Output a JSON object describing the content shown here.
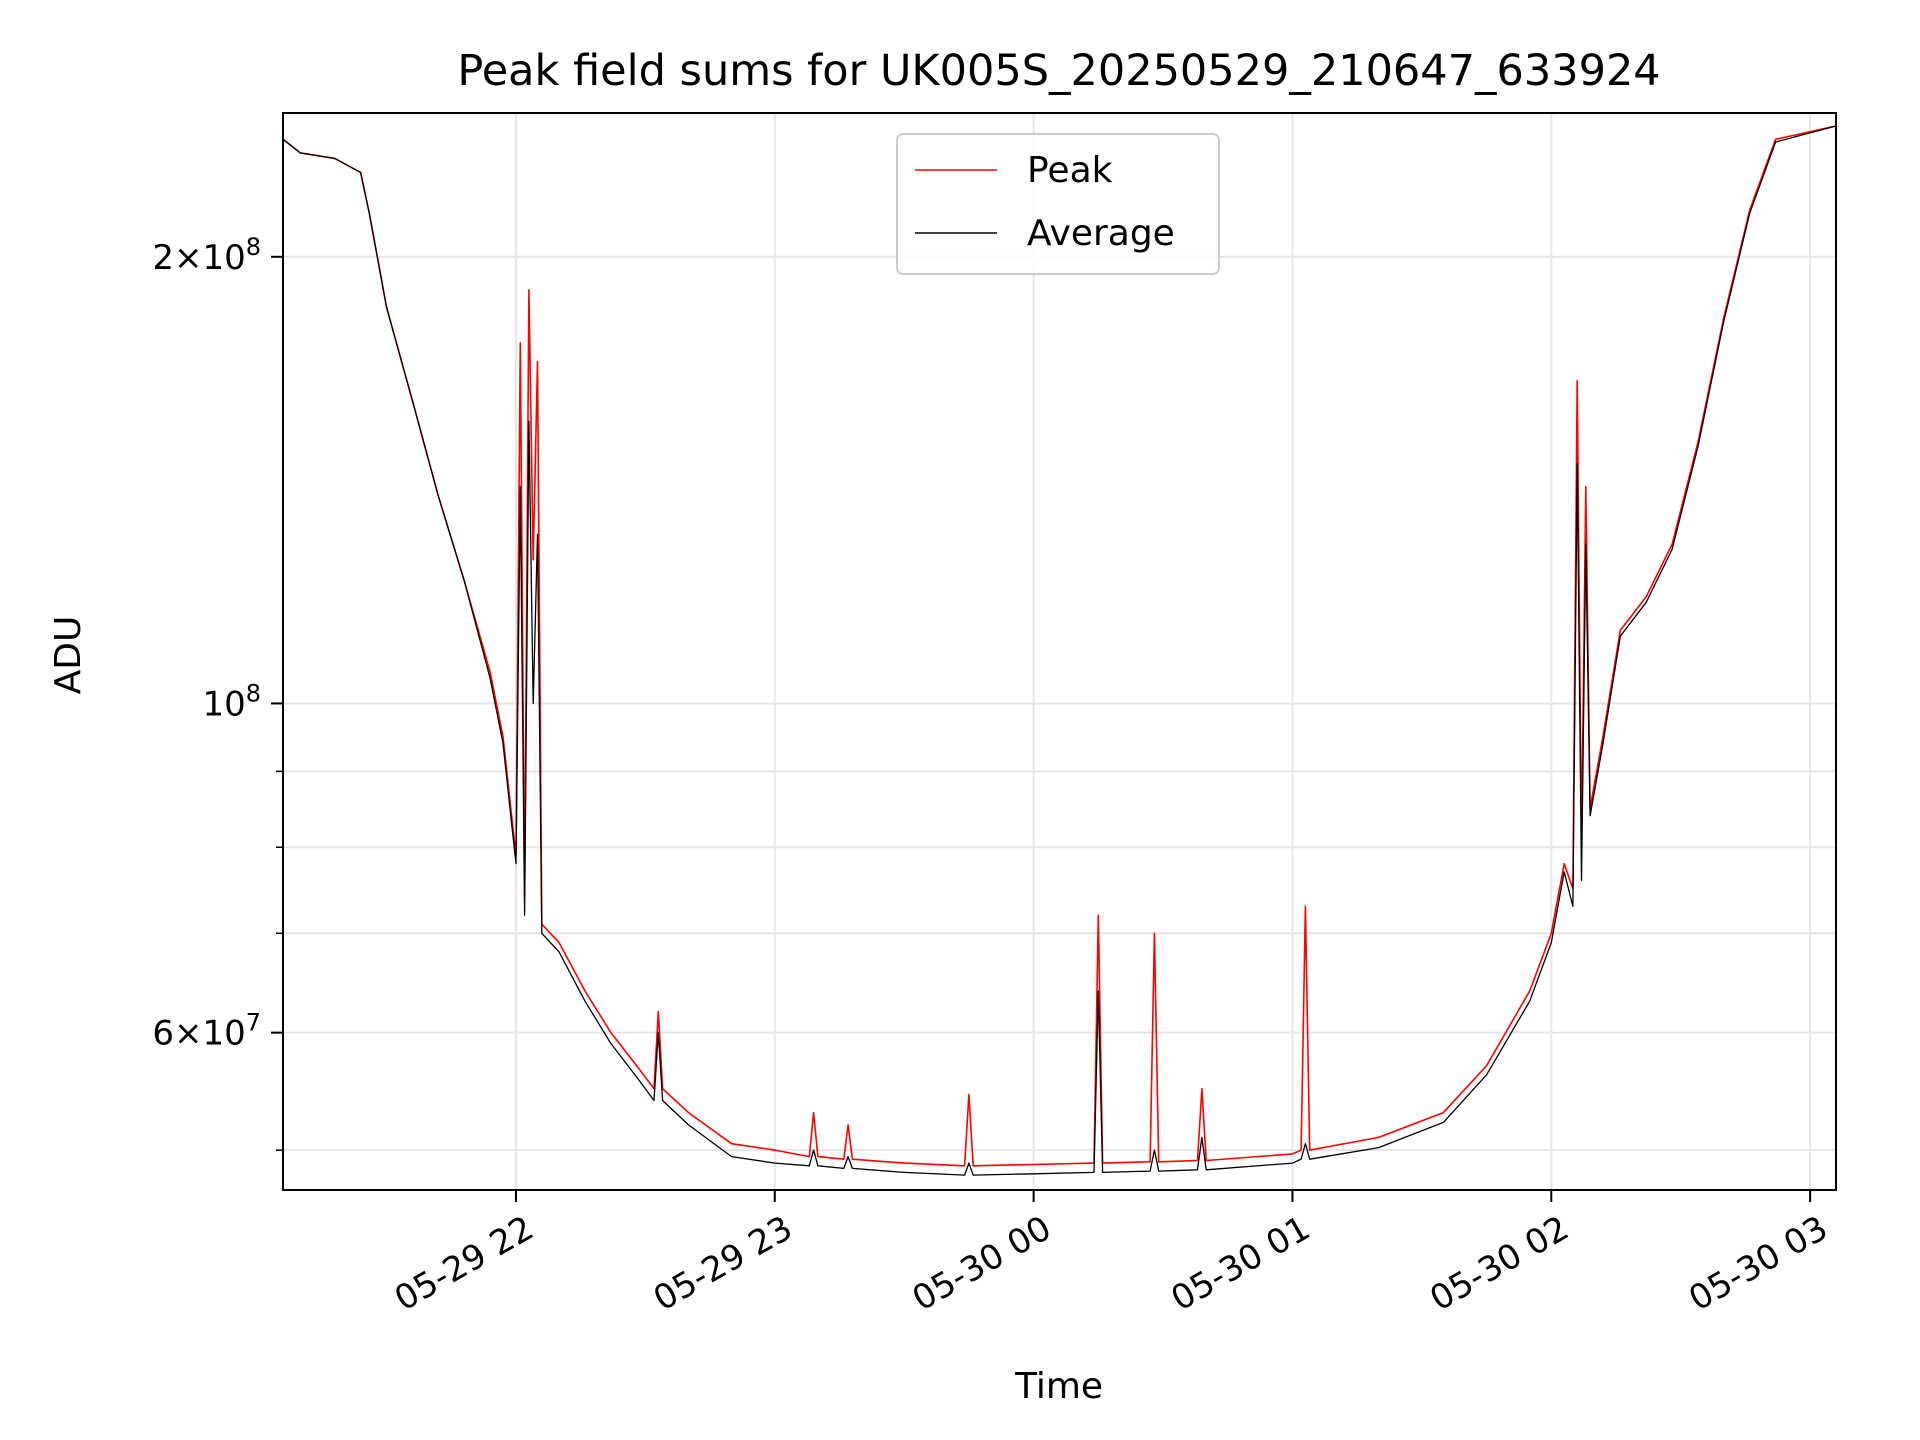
{
  "chart_data": {
    "type": "line",
    "title": "Peak field sums for UK005S_20250529_210647_633924",
    "xlabel": "Time",
    "ylabel": "ADU",
    "yscale": "log",
    "xlim": [
      "2025-05-29 21:06",
      "2025-05-30 03:06"
    ],
    "ylim": [
      47000000,
      250000000
    ],
    "grid": true,
    "legend": {
      "position": "top-center",
      "entries": [
        "Peak",
        "Average"
      ]
    },
    "x_ticks": [
      {
        "value": "2025-05-29 22:00",
        "label": "05-29 22"
      },
      {
        "value": "2025-05-29 23:00",
        "label": "05-29 23"
      },
      {
        "value": "2025-05-30 00:00",
        "label": "05-30 00"
      },
      {
        "value": "2025-05-30 01:00",
        "label": "05-30 01"
      },
      {
        "value": "2025-05-30 02:00",
        "label": "05-30 02"
      },
      {
        "value": "2025-05-30 03:00",
        "label": "05-30 03"
      }
    ],
    "y_ticks_major": [
      {
        "value": 100000000,
        "base": "10",
        "exp": "8",
        "mant": ""
      },
      {
        "value": 200000000,
        "base": "10",
        "exp": "8",
        "mant": "2"
      },
      {
        "value": 60000000,
        "base": "10",
        "exp": "7",
        "mant": "6"
      }
    ],
    "y_ticks_minor": [
      50000000,
      70000000,
      80000000,
      90000000
    ],
    "series": [
      {
        "name": "Peak",
        "color": "#ff0000",
        "points": [
          [
            "2025-05-29 21:06",
            240000000
          ],
          [
            "2025-05-29 21:10",
            235000000
          ],
          [
            "2025-05-29 21:18",
            233000000
          ],
          [
            "2025-05-29 21:24",
            228000000
          ],
          [
            "2025-05-29 21:26",
            214000000
          ],
          [
            "2025-05-29 21:30",
            185000000
          ],
          [
            "2025-05-29 21:36",
            160000000
          ],
          [
            "2025-05-29 21:42",
            138000000
          ],
          [
            "2025-05-29 21:48",
            121000000
          ],
          [
            "2025-05-29 21:54",
            105000000
          ],
          [
            "2025-05-29 21:57",
            95000000
          ],
          [
            "2025-05-29 21:59",
            84000000
          ],
          [
            "2025-05-29 22:00",
            79000000
          ],
          [
            "2025-05-29 22:01",
            175000000
          ],
          [
            "2025-05-29 22:02",
            74000000
          ],
          [
            "2025-05-29 22:03",
            190000000
          ],
          [
            "2025-05-29 22:04",
            125000000
          ],
          [
            "2025-05-29 22:05",
            170000000
          ],
          [
            "2025-05-29 22:06",
            71000000
          ],
          [
            "2025-05-29 22:10",
            69000000
          ],
          [
            "2025-05-29 22:16",
            64000000
          ],
          [
            "2025-05-29 22:22",
            60000000
          ],
          [
            "2025-05-29 22:28",
            57000000
          ],
          [
            "2025-05-29 22:32",
            55000000
          ],
          [
            "2025-05-29 22:33",
            62000000
          ],
          [
            "2025-05-29 22:34",
            55000000
          ],
          [
            "2025-05-29 22:40",
            53000000
          ],
          [
            "2025-05-29 22:50",
            50500000
          ],
          [
            "2025-05-29 23:00",
            50000000
          ],
          [
            "2025-05-29 23:08",
            49500000
          ],
          [
            "2025-05-29 23:09",
            53000000
          ],
          [
            "2025-05-29 23:10",
            49500000
          ],
          [
            "2025-05-29 23:16",
            49300000
          ],
          [
            "2025-05-29 23:17",
            52000000
          ],
          [
            "2025-05-29 23:18",
            49300000
          ],
          [
            "2025-05-29 23:30",
            49000000
          ],
          [
            "2025-05-29 23:44",
            48800000
          ],
          [
            "2025-05-29 23:45",
            54500000
          ],
          [
            "2025-05-29 23:46",
            48800000
          ],
          [
            "2025-05-30 00:00",
            48900000
          ],
          [
            "2025-05-30 00:14",
            49000000
          ],
          [
            "2025-05-30 00:15",
            72000000
          ],
          [
            "2025-05-30 00:16",
            49000000
          ],
          [
            "2025-05-30 00:27",
            49100000
          ],
          [
            "2025-05-30 00:28",
            70000000
          ],
          [
            "2025-05-30 00:29",
            49100000
          ],
          [
            "2025-05-30 00:38",
            49200000
          ],
          [
            "2025-05-30 00:39",
            55000000
          ],
          [
            "2025-05-30 00:40",
            49200000
          ],
          [
            "2025-05-30 01:00",
            49700000
          ],
          [
            "2025-05-30 01:02",
            50000000
          ],
          [
            "2025-05-30 01:03",
            73000000
          ],
          [
            "2025-05-30 01:04",
            50000000
          ],
          [
            "2025-05-30 01:20",
            51000000
          ],
          [
            "2025-05-30 01:35",
            53000000
          ],
          [
            "2025-05-30 01:45",
            57000000
          ],
          [
            "2025-05-30 01:55",
            64000000
          ],
          [
            "2025-05-30 02:00",
            70000000
          ],
          [
            "2025-05-30 02:03",
            78000000
          ],
          [
            "2025-05-30 02:05",
            75000000
          ],
          [
            "2025-05-30 02:06",
            165000000
          ],
          [
            "2025-05-30 02:07",
            80000000
          ],
          [
            "2025-05-30 02:08",
            140000000
          ],
          [
            "2025-05-30 02:09",
            85000000
          ],
          [
            "2025-05-30 02:12",
            95000000
          ],
          [
            "2025-05-30 02:16",
            112000000
          ],
          [
            "2025-05-30 02:22",
            118000000
          ],
          [
            "2025-05-30 02:28",
            128000000
          ],
          [
            "2025-05-30 02:34",
            150000000
          ],
          [
            "2025-05-30 02:40",
            182000000
          ],
          [
            "2025-05-30 02:46",
            215000000
          ],
          [
            "2025-05-30 02:52",
            240000000
          ],
          [
            "2025-05-30 03:06",
            245000000
          ]
        ]
      },
      {
        "name": "Average",
        "color": "#000000",
        "points": [
          [
            "2025-05-29 21:06",
            240000000
          ],
          [
            "2025-05-29 21:10",
            235000000
          ],
          [
            "2025-05-29 21:18",
            233000000
          ],
          [
            "2025-05-29 21:24",
            228000000
          ],
          [
            "2025-05-29 21:26",
            214000000
          ],
          [
            "2025-05-29 21:30",
            185000000
          ],
          [
            "2025-05-29 21:36",
            160000000
          ],
          [
            "2025-05-29 21:42",
            138000000
          ],
          [
            "2025-05-29 21:48",
            121000000
          ],
          [
            "2025-05-29 21:54",
            104000000
          ],
          [
            "2025-05-29 21:57",
            94000000
          ],
          [
            "2025-05-29 21:59",
            83000000
          ],
          [
            "2025-05-29 22:00",
            78000000
          ],
          [
            "2025-05-29 22:01",
            140000000
          ],
          [
            "2025-05-29 22:02",
            72000000
          ],
          [
            "2025-05-29 22:03",
            155000000
          ],
          [
            "2025-05-29 22:04",
            100000000
          ],
          [
            "2025-05-29 22:05",
            130000000
          ],
          [
            "2025-05-29 22:06",
            70000000
          ],
          [
            "2025-05-29 22:10",
            68000000
          ],
          [
            "2025-05-29 22:16",
            63000000
          ],
          [
            "2025-05-29 22:22",
            59000000
          ],
          [
            "2025-05-29 22:28",
            56000000
          ],
          [
            "2025-05-29 22:32",
            54000000
          ],
          [
            "2025-05-29 22:33",
            60000000
          ],
          [
            "2025-05-29 22:34",
            54000000
          ],
          [
            "2025-05-29 22:40",
            52000000
          ],
          [
            "2025-05-29 22:50",
            49500000
          ],
          [
            "2025-05-29 23:00",
            49000000
          ],
          [
            "2025-05-29 23:08",
            48800000
          ],
          [
            "2025-05-29 23:09",
            50000000
          ],
          [
            "2025-05-29 23:10",
            48800000
          ],
          [
            "2025-05-29 23:16",
            48600000
          ],
          [
            "2025-05-29 23:17",
            49500000
          ],
          [
            "2025-05-29 23:18",
            48600000
          ],
          [
            "2025-05-29 23:30",
            48300000
          ],
          [
            "2025-05-29 23:44",
            48100000
          ],
          [
            "2025-05-29 23:45",
            49000000
          ],
          [
            "2025-05-29 23:46",
            48100000
          ],
          [
            "2025-05-30 00:00",
            48200000
          ],
          [
            "2025-05-30 00:14",
            48300000
          ],
          [
            "2025-05-30 00:15",
            64000000
          ],
          [
            "2025-05-30 00:16",
            48300000
          ],
          [
            "2025-05-30 00:27",
            48400000
          ],
          [
            "2025-05-30 00:28",
            50000000
          ],
          [
            "2025-05-30 00:29",
            48400000
          ],
          [
            "2025-05-30 00:38",
            48500000
          ],
          [
            "2025-05-30 00:39",
            51000000
          ],
          [
            "2025-05-30 00:40",
            48500000
          ],
          [
            "2025-05-30 01:00",
            49000000
          ],
          [
            "2025-05-30 01:02",
            49300000
          ],
          [
            "2025-05-30 01:03",
            50500000
          ],
          [
            "2025-05-30 01:04",
            49300000
          ],
          [
            "2025-05-30 01:20",
            50200000
          ],
          [
            "2025-05-30 01:35",
            52200000
          ],
          [
            "2025-05-30 01:45",
            56200000
          ],
          [
            "2025-05-30 01:55",
            63000000
          ],
          [
            "2025-05-30 02:00",
            69000000
          ],
          [
            "2025-05-30 02:03",
            77000000
          ],
          [
            "2025-05-30 02:05",
            73000000
          ],
          [
            "2025-05-30 02:06",
            145000000
          ],
          [
            "2025-05-30 02:07",
            76000000
          ],
          [
            "2025-05-30 02:08",
            128000000
          ],
          [
            "2025-05-30 02:09",
            84000000
          ],
          [
            "2025-05-30 02:12",
            94000000
          ],
          [
            "2025-05-30 02:16",
            111000000
          ],
          [
            "2025-05-30 02:22",
            117000000
          ],
          [
            "2025-05-30 02:28",
            127000000
          ],
          [
            "2025-05-30 02:34",
            149000000
          ],
          [
            "2025-05-30 02:40",
            181000000
          ],
          [
            "2025-05-30 02:46",
            214000000
          ],
          [
            "2025-05-30 02:52",
            239000000
          ],
          [
            "2025-05-30 03:06",
            245000000
          ]
        ]
      }
    ]
  }
}
